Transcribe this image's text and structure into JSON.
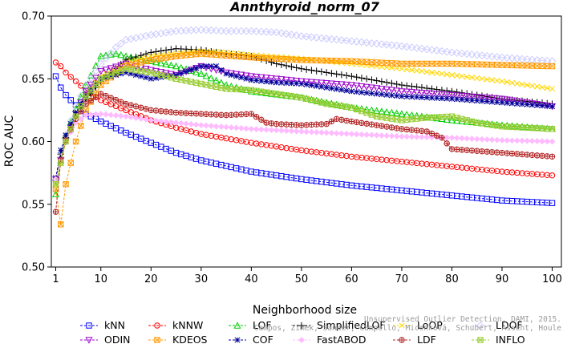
{
  "chart_data": {
    "type": "line",
    "title": "Annthyroid_norm_07",
    "xlabel": "Neighborhood size",
    "ylabel": "ROC AUC",
    "xlim": [
      0,
      100
    ],
    "ylim": [
      0.5,
      0.7
    ],
    "x_ticks": [
      1,
      10,
      20,
      30,
      40,
      50,
      60,
      70,
      80,
      90,
      100
    ],
    "y_ticks": [
      0.5,
      0.55,
      0.6,
      0.65,
      0.7
    ],
    "y_tick_labels": [
      "0.50",
      "0.55",
      "0.60",
      "0.65",
      "0.70"
    ],
    "grid": false,
    "legend_position": "bottom",
    "series": [
      {
        "name": "kNN",
        "color": "#0000ff",
        "marker": "square",
        "points": [
          [
            1,
            0.652
          ],
          [
            2,
            0.643
          ],
          [
            3,
            0.637
          ],
          [
            5,
            0.629
          ],
          [
            7,
            0.622
          ],
          [
            10,
            0.616
          ],
          [
            15,
            0.607
          ],
          [
            20,
            0.599
          ],
          [
            25,
            0.591
          ],
          [
            30,
            0.585
          ],
          [
            40,
            0.576
          ],
          [
            50,
            0.57
          ],
          [
            60,
            0.565
          ],
          [
            70,
            0.561
          ],
          [
            80,
            0.557
          ],
          [
            90,
            0.553
          ],
          [
            100,
            0.551
          ]
        ]
      },
      {
        "name": "kNNW",
        "color": "#ff0000",
        "marker": "circle",
        "points": [
          [
            1,
            0.663
          ],
          [
            2,
            0.66
          ],
          [
            3,
            0.655
          ],
          [
            5,
            0.648
          ],
          [
            7,
            0.641
          ],
          [
            10,
            0.633
          ],
          [
            15,
            0.625
          ],
          [
            20,
            0.617
          ],
          [
            25,
            0.611
          ],
          [
            30,
            0.606
          ],
          [
            40,
            0.599
          ],
          [
            50,
            0.593
          ],
          [
            60,
            0.588
          ],
          [
            70,
            0.584
          ],
          [
            80,
            0.58
          ],
          [
            90,
            0.576
          ],
          [
            100,
            0.573
          ]
        ]
      },
      {
        "name": "LOF",
        "color": "#00cc00",
        "marker": "triangle-up",
        "points": [
          [
            1,
            0.558
          ],
          [
            2,
            0.585
          ],
          [
            3,
            0.605
          ],
          [
            5,
            0.626
          ],
          [
            7,
            0.645
          ],
          [
            10,
            0.668
          ],
          [
            13,
            0.67
          ],
          [
            15,
            0.668
          ],
          [
            20,
            0.664
          ],
          [
            25,
            0.66
          ],
          [
            30,
            0.654
          ],
          [
            35,
            0.645
          ],
          [
            40,
            0.64
          ],
          [
            50,
            0.635
          ],
          [
            60,
            0.627
          ],
          [
            70,
            0.622
          ],
          [
            80,
            0.617
          ],
          [
            90,
            0.613
          ],
          [
            100,
            0.61
          ]
        ]
      },
      {
        "name": "SimplifiedLOF",
        "color": "#000000",
        "marker": "plus",
        "points": [
          [
            1,
            0.569
          ],
          [
            2,
            0.59
          ],
          [
            3,
            0.603
          ],
          [
            5,
            0.62
          ],
          [
            7,
            0.633
          ],
          [
            10,
            0.648
          ],
          [
            15,
            0.665
          ],
          [
            20,
            0.671
          ],
          [
            25,
            0.674
          ],
          [
            30,
            0.673
          ],
          [
            35,
            0.67
          ],
          [
            40,
            0.668
          ],
          [
            45,
            0.662
          ],
          [
            50,
            0.658
          ],
          [
            60,
            0.652
          ],
          [
            70,
            0.645
          ],
          [
            80,
            0.64
          ],
          [
            90,
            0.634
          ],
          [
            100,
            0.63
          ]
        ]
      },
      {
        "name": "LoOP",
        "color": "#ffd700",
        "marker": "cross",
        "points": [
          [
            1,
            0.565
          ],
          [
            3,
            0.6
          ],
          [
            5,
            0.622
          ],
          [
            7,
            0.638
          ],
          [
            10,
            0.652
          ],
          [
            15,
            0.663
          ],
          [
            20,
            0.668
          ],
          [
            25,
            0.67
          ],
          [
            30,
            0.672
          ],
          [
            35,
            0.671
          ],
          [
            40,
            0.669
          ],
          [
            50,
            0.666
          ],
          [
            60,
            0.662
          ],
          [
            70,
            0.658
          ],
          [
            80,
            0.653
          ],
          [
            90,
            0.648
          ],
          [
            100,
            0.642
          ]
        ]
      },
      {
        "name": "LDOF",
        "color": "#ccccff",
        "marker": "diamond",
        "points": [
          [
            1,
            0.57
          ],
          [
            3,
            0.605
          ],
          [
            5,
            0.628
          ],
          [
            7,
            0.645
          ],
          [
            10,
            0.662
          ],
          [
            13,
            0.675
          ],
          [
            15,
            0.681
          ],
          [
            20,
            0.685
          ],
          [
            25,
            0.688
          ],
          [
            30,
            0.689
          ],
          [
            35,
            0.688
          ],
          [
            40,
            0.688
          ],
          [
            45,
            0.687
          ],
          [
            50,
            0.684
          ],
          [
            60,
            0.68
          ],
          [
            70,
            0.676
          ],
          [
            80,
            0.671
          ],
          [
            90,
            0.667
          ],
          [
            100,
            0.664
          ]
        ]
      },
      {
        "name": "ODIN",
        "color": "#9900cc",
        "marker": "triangle-down",
        "points": [
          [
            1,
            0.57
          ],
          [
            3,
            0.6
          ],
          [
            5,
            0.622
          ],
          [
            7,
            0.64
          ],
          [
            10,
            0.656
          ],
          [
            15,
            0.662
          ],
          [
            20,
            0.657
          ],
          [
            25,
            0.653
          ],
          [
            30,
            0.66
          ],
          [
            35,
            0.655
          ],
          [
            40,
            0.652
          ],
          [
            45,
            0.65
          ],
          [
            50,
            0.648
          ],
          [
            60,
            0.645
          ],
          [
            70,
            0.64
          ],
          [
            80,
            0.637
          ],
          [
            90,
            0.634
          ],
          [
            100,
            0.628
          ]
        ]
      },
      {
        "name": "KDEOS",
        "color": "#ff9900",
        "marker": "square-x",
        "points": [
          [
            1,
            0.562
          ],
          [
            2,
            0.534
          ],
          [
            3,
            0.566
          ],
          [
            5,
            0.6
          ],
          [
            7,
            0.625
          ],
          [
            10,
            0.645
          ],
          [
            15,
            0.66
          ],
          [
            20,
            0.665
          ],
          [
            25,
            0.668
          ],
          [
            30,
            0.67
          ],
          [
            40,
            0.667
          ],
          [
            50,
            0.665
          ],
          [
            60,
            0.664
          ],
          [
            70,
            0.662
          ],
          [
            80,
            0.662
          ],
          [
            90,
            0.661
          ],
          [
            100,
            0.66
          ]
        ]
      },
      {
        "name": "COF",
        "color": "#000099",
        "marker": "star",
        "points": [
          [
            1,
            0.571
          ],
          [
            2,
            0.593
          ],
          [
            3,
            0.605
          ],
          [
            5,
            0.623
          ],
          [
            7,
            0.637
          ],
          [
            10,
            0.65
          ],
          [
            15,
            0.655
          ],
          [
            20,
            0.65
          ],
          [
            25,
            0.653
          ],
          [
            30,
            0.66
          ],
          [
            33,
            0.66
          ],
          [
            35,
            0.654
          ],
          [
            40,
            0.649
          ],
          [
            45,
            0.647
          ],
          [
            50,
            0.646
          ],
          [
            60,
            0.64
          ],
          [
            70,
            0.636
          ],
          [
            80,
            0.634
          ],
          [
            90,
            0.631
          ],
          [
            100,
            0.628
          ]
        ]
      },
      {
        "name": "FastABOD",
        "color": "#ffbbff",
        "marker": "diamond-filled",
        "points": [
          [
            1,
            0.57
          ],
          [
            3,
            0.6
          ],
          [
            5,
            0.615
          ],
          [
            7,
            0.621
          ],
          [
            10,
            0.622
          ],
          [
            15,
            0.62
          ],
          [
            20,
            0.617
          ],
          [
            25,
            0.615
          ],
          [
            30,
            0.613
          ],
          [
            40,
            0.61
          ],
          [
            50,
            0.608
          ],
          [
            60,
            0.606
          ],
          [
            70,
            0.604
          ],
          [
            80,
            0.603
          ],
          [
            90,
            0.601
          ],
          [
            100,
            0.6
          ]
        ]
      },
      {
        "name": "LDF",
        "color": "#b22222",
        "marker": "circle-plus",
        "points": [
          [
            1,
            0.544
          ],
          [
            2,
            0.585
          ],
          [
            3,
            0.601
          ],
          [
            5,
            0.618
          ],
          [
            7,
            0.63
          ],
          [
            10,
            0.638
          ],
          [
            15,
            0.63
          ],
          [
            20,
            0.625
          ],
          [
            25,
            0.623
          ],
          [
            30,
            0.622
          ],
          [
            35,
            0.621
          ],
          [
            40,
            0.622
          ],
          [
            43,
            0.615
          ],
          [
            45,
            0.614
          ],
          [
            50,
            0.613
          ],
          [
            55,
            0.614
          ],
          [
            57,
            0.618
          ],
          [
            60,
            0.616
          ],
          [
            65,
            0.613
          ],
          [
            70,
            0.61
          ],
          [
            75,
            0.608
          ],
          [
            78,
            0.603
          ],
          [
            80,
            0.594
          ],
          [
            90,
            0.591
          ],
          [
            100,
            0.588
          ]
        ]
      },
      {
        "name": "INFLO",
        "color": "#99cc33",
        "marker": "square-star",
        "points": [
          [
            1,
            0.566
          ],
          [
            3,
            0.6
          ],
          [
            5,
            0.62
          ],
          [
            7,
            0.636
          ],
          [
            10,
            0.65
          ],
          [
            15,
            0.658
          ],
          [
            20,
            0.655
          ],
          [
            25,
            0.65
          ],
          [
            30,
            0.646
          ],
          [
            35,
            0.642
          ],
          [
            40,
            0.641
          ],
          [
            45,
            0.638
          ],
          [
            50,
            0.635
          ],
          [
            55,
            0.63
          ],
          [
            60,
            0.627
          ],
          [
            65,
            0.62
          ],
          [
            70,
            0.617
          ],
          [
            75,
            0.619
          ],
          [
            80,
            0.62
          ],
          [
            85,
            0.615
          ],
          [
            90,
            0.612
          ],
          [
            100,
            0.61
          ]
        ]
      }
    ]
  },
  "watermark": {
    "line1": "Campos, Zimek, Sander, Campello, Micenková, Schubert, Assent, Houle",
    "line2": "Unsupervised Outlier Detection. DAMI, 2015."
  }
}
